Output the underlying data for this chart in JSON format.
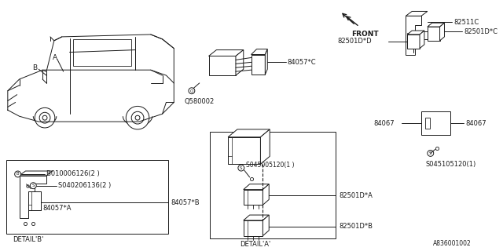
{
  "background_color": "#ffffff",
  "line_color": "#1a1a1a",
  "text_color": "#1a1a1a",
  "fig_width": 6.4,
  "fig_height": 3.2,
  "dpi": 100,
  "parts": {
    "84057C": "84057*C",
    "0580002": "Q580002",
    "82511C": "82511C",
    "82501DC": "82501D*C",
    "82501DD": "82501D*D",
    "84067": "84067",
    "045105120": "S045105120(1)",
    "045005120": "S045005120(1 )",
    "82501DA": "82501D*A",
    "82501DB": "82501D*B",
    "84057A": "84057*A",
    "84057B": "84057*B",
    "B010006126": "B010006126(2 )",
    "S040206136": "S040206136(2 )",
    "detail_A": "DETAIL'A'",
    "detail_B": "DETAIL'B'",
    "front": "FRONT",
    "ref_code": "A836001002",
    "car_A": "A",
    "car_B": "B"
  }
}
